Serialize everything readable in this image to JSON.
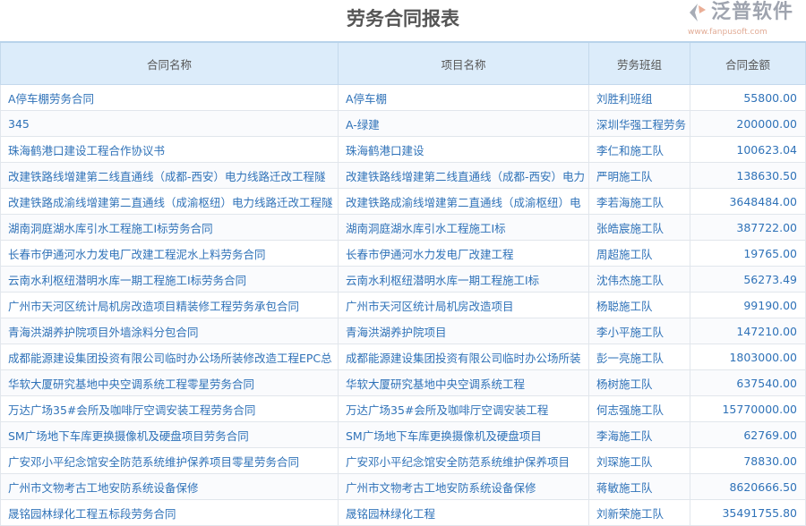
{
  "title": "劳务合同报表",
  "columns": [
    "合同名称",
    "项目名称",
    "劳务班组",
    "合同金额"
  ],
  "rows": [
    {
      "contract": "A停车棚劳务合同",
      "project": "A停车棚",
      "team": "刘胜利班组",
      "amount": "55800.00"
    },
    {
      "contract": "345",
      "project": "A-绿建",
      "team": "深圳华强工程劳务",
      "amount": "200000.00"
    },
    {
      "contract": "珠海鹤港口建设工程合作协议书",
      "project": "珠海鹤港口建设",
      "team": "李仁和施工队",
      "amount": "100623.04"
    },
    {
      "contract": "改建铁路线增建第二线直通线（成都-西安）电力线路迁改工程隧",
      "project": "改建铁路线增建第二线直通线（成都-西安）电力",
      "team": "严明施工队",
      "amount": "138630.50"
    },
    {
      "contract": "改建铁路成渝线增建第二直通线（成渝枢纽）电力线路迁改工程隧",
      "project": "改建铁路成渝线增建第二直通线（成渝枢纽）电",
      "team": "李若海施工队",
      "amount": "3648484.00"
    },
    {
      "contract": "湖南洞庭湖水库引水工程施工I标劳务合同",
      "project": "湖南洞庭湖水库引水工程施工I标",
      "team": "张皓宸施工队",
      "amount": "387722.00"
    },
    {
      "contract": "长春市伊通河水力发电厂改建工程泥水上料劳务合同",
      "project": "长春市伊通河水力发电厂改建工程",
      "team": "周超施工队",
      "amount": "19765.00"
    },
    {
      "contract": "云南水利枢纽潜明水库一期工程施工I标劳务合同",
      "project": "云南水利枢纽潜明水库一期工程施工I标",
      "team": "沈伟杰施工队",
      "amount": "56273.49"
    },
    {
      "contract": "广州市天河区统计局机房改造项目精装修工程劳务承包合同",
      "project": "广州市天河区统计局机房改造项目",
      "team": "杨聪施工队",
      "amount": "99190.00"
    },
    {
      "contract": "青海洪湖养护院项目外墙涂料分包合同",
      "project": "青海洪湖养护院项目",
      "team": "李小平施工队",
      "amount": "147210.00"
    },
    {
      "contract": "成都能源建设集团投资有限公司临时办公场所装修改造工程EPC总",
      "project": "成都能源建设集团投资有限公司临时办公场所装",
      "team": "彭一亮施工队",
      "amount": "1803000.00"
    },
    {
      "contract": "华软大厦研究基地中央空调系统工程零星劳务合同",
      "project": "华软大厦研究基地中央空调系统工程",
      "team": "杨树施工队",
      "amount": "637540.00"
    },
    {
      "contract": "万达广场35#会所及咖啡厅空调安装工程劳务合同",
      "project": "万达广场35#会所及咖啡厅空调安装工程",
      "team": "何志强施工队",
      "amount": "15770000.00"
    },
    {
      "contract": "SM广场地下车库更换摄像机及硬盘项目劳务合同",
      "project": "SM广场地下车库更换摄像机及硬盘项目",
      "team": "李海施工队",
      "amount": "62769.00"
    },
    {
      "contract": "广安邓小平纪念馆安全防范系统维护保养项目零星劳务合同",
      "project": "广安邓小平纪念馆安全防范系统维护保养项目",
      "team": "刘琛施工队",
      "amount": "78830.00"
    },
    {
      "contract": "广州市文物考古工地安防系统设备保修",
      "project": "广州市文物考古工地安防系统设备保修",
      "team": "蒋敏施工队",
      "amount": "8620666.50"
    },
    {
      "contract": "晟铭园林绿化工程五标段劳务合同",
      "project": "晟铭园林绿化工程",
      "team": "刘新荣施工队",
      "amount": "35491755.80"
    }
  ],
  "watermark": {
    "text": "泛普软件",
    "url": "www.fanpusoft.com"
  },
  "colors": {
    "header_bg": "#dcecfa",
    "link_text": "#2f72b8",
    "title_text": "#555555"
  }
}
